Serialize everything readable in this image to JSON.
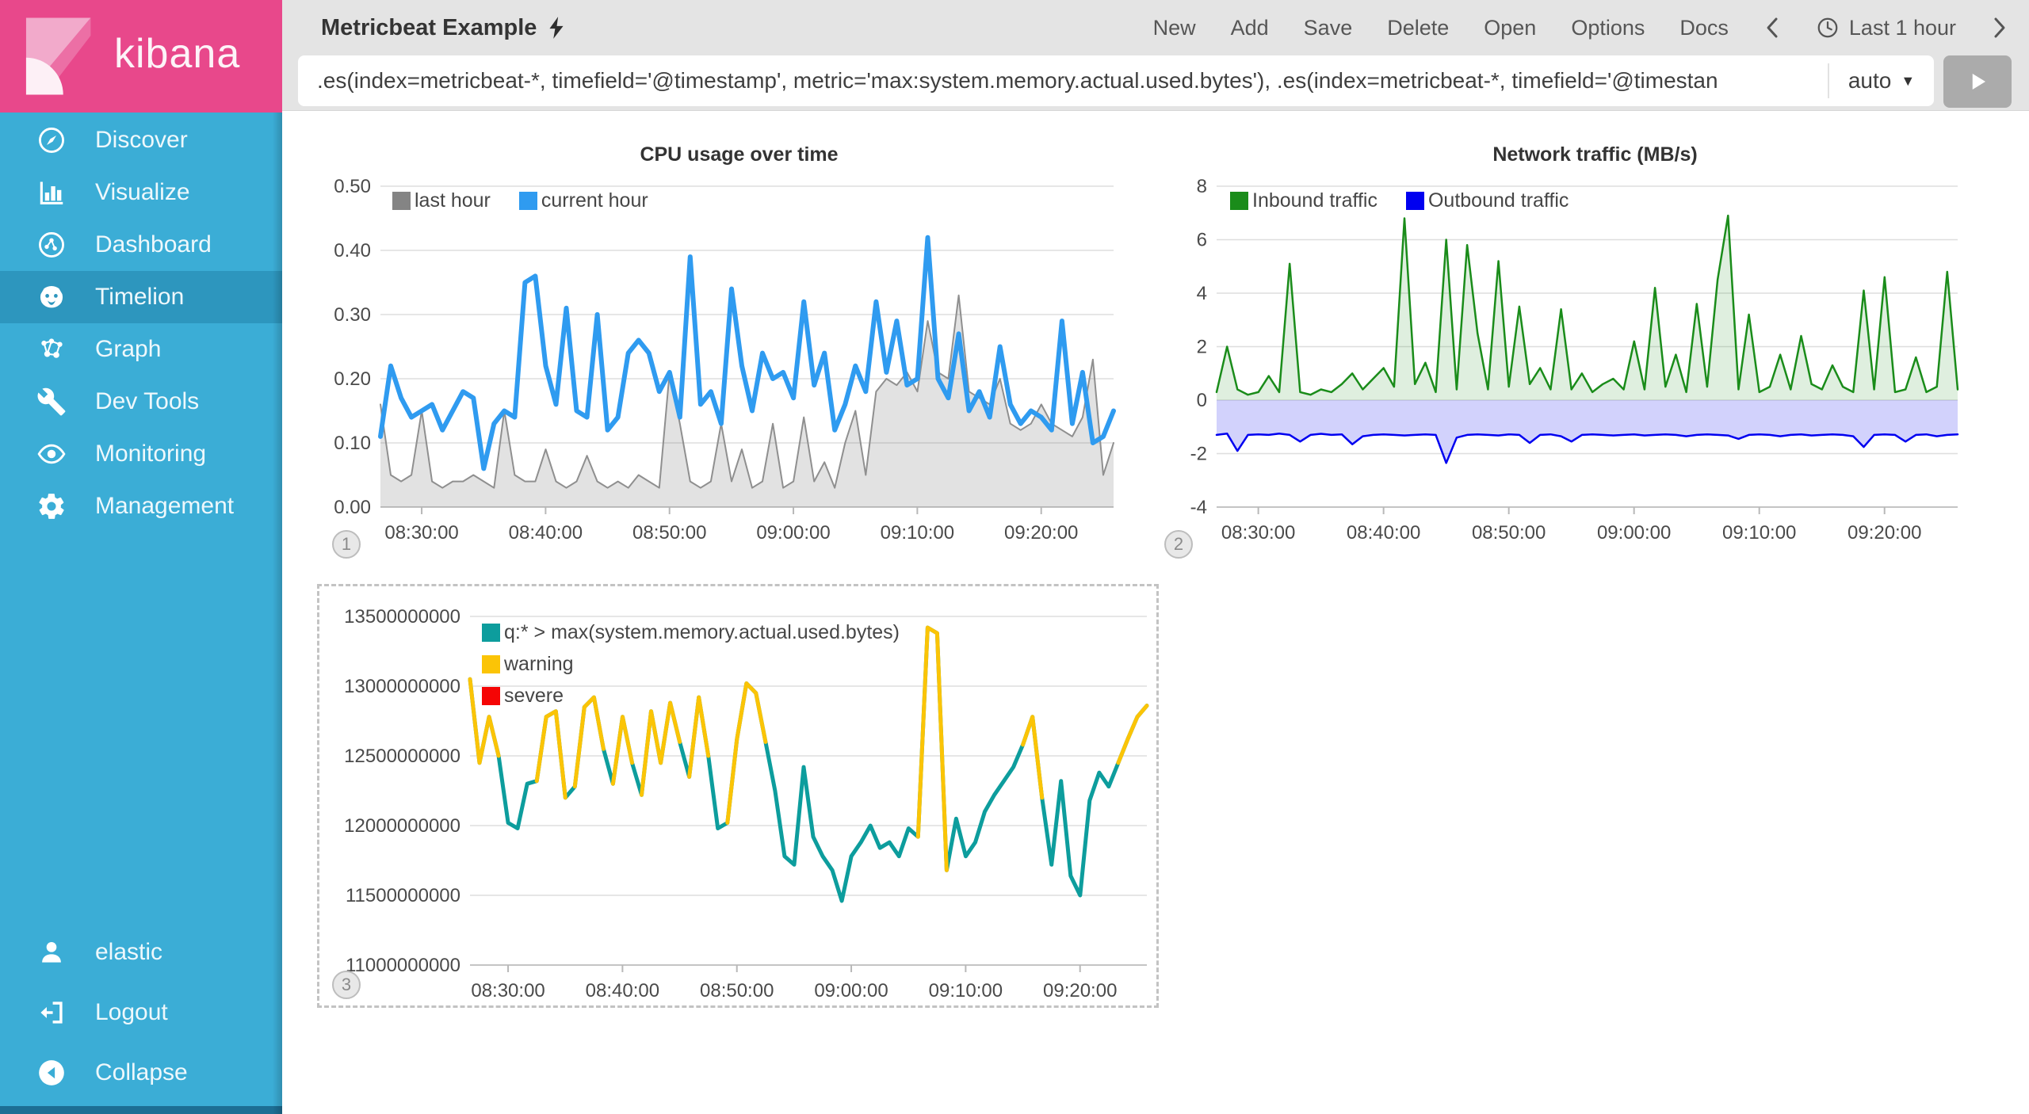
{
  "sidebar": {
    "logo_text": "kibana",
    "items": [
      {
        "label": "Discover",
        "icon": "compass"
      },
      {
        "label": "Visualize",
        "icon": "bar-chart"
      },
      {
        "label": "Dashboard",
        "icon": "dashboard-gauge"
      },
      {
        "label": "Timelion",
        "icon": "timelion-face",
        "active": true
      },
      {
        "label": "Graph",
        "icon": "node-graph"
      },
      {
        "label": "Dev Tools",
        "icon": "wrench"
      },
      {
        "label": "Monitoring",
        "icon": "eye"
      },
      {
        "label": "Management",
        "icon": "gear"
      }
    ],
    "footer_items": [
      {
        "label": "elastic",
        "icon": "user"
      },
      {
        "label": "Logout",
        "icon": "logout-arrow"
      },
      {
        "label": "Collapse",
        "icon": "collapse-circle"
      }
    ],
    "colors": {
      "background": "#3badd6",
      "active_row": "#2d96be",
      "logo_background": "#e8488b"
    }
  },
  "topbar": {
    "title": "Metricbeat Example",
    "menu_items": [
      "New",
      "Add",
      "Save",
      "Delete",
      "Open",
      "Options",
      "Docs"
    ],
    "timepicker": {
      "label": "Last 1 hour"
    },
    "query": {
      "value": ".es(index=metricbeat-*, timefield='@timestamp', metric='max:system.memory.actual.used.bytes'), .es(index=metricbeat-*, timefield='@timestan",
      "interval": "auto"
    }
  },
  "panels": [
    {
      "number": "1"
    },
    {
      "number": "2"
    },
    {
      "number": "3"
    }
  ],
  "chart_data": [
    {
      "type": "line",
      "title": "CPU usage over time",
      "x_tick_labels": [
        "08:30:00",
        "08:40:00",
        "08:50:00",
        "09:00:00",
        "09:10:00",
        "09:20:00"
      ],
      "y_tick_labels": [
        "0.50",
        "0.40",
        "0.30",
        "0.20",
        "0.10",
        "0.00"
      ],
      "ylim": [
        0,
        0.5
      ],
      "grid": true,
      "legend_position": "top-left-horizontal",
      "legend_items": [
        {
          "label": "last hour",
          "color": "#848484"
        },
        {
          "label": "current hour",
          "color": "#2f9bf0"
        }
      ],
      "series": [
        {
          "name": "last hour",
          "color": "#8f8f8f",
          "line_width": 2,
          "area": true,
          "fill": "rgba(125,125,125,0.22)",
          "values": [
            0.16,
            0.05,
            0.04,
            0.05,
            0.15,
            0.04,
            0.03,
            0.04,
            0.04,
            0.05,
            0.04,
            0.03,
            0.15,
            0.05,
            0.04,
            0.04,
            0.09,
            0.04,
            0.03,
            0.04,
            0.08,
            0.04,
            0.03,
            0.04,
            0.03,
            0.05,
            0.04,
            0.03,
            0.21,
            0.13,
            0.04,
            0.03,
            0.04,
            0.13,
            0.04,
            0.09,
            0.03,
            0.04,
            0.13,
            0.03,
            0.04,
            0.14,
            0.04,
            0.07,
            0.03,
            0.1,
            0.15,
            0.05,
            0.18,
            0.2,
            0.19,
            0.21,
            0.18,
            0.29,
            0.21,
            0.2,
            0.33,
            0.18,
            0.17,
            0.16,
            0.2,
            0.13,
            0.12,
            0.13,
            0.16,
            0.13,
            0.12,
            0.11,
            0.14,
            0.23,
            0.05,
            0.1
          ]
        },
        {
          "name": "current hour",
          "color": "#2f9bf0",
          "line_width": 6,
          "area": false,
          "values": [
            0.11,
            0.22,
            0.17,
            0.14,
            0.15,
            0.16,
            0.12,
            0.15,
            0.18,
            0.17,
            0.06,
            0.13,
            0.15,
            0.14,
            0.35,
            0.36,
            0.22,
            0.16,
            0.31,
            0.15,
            0.14,
            0.3,
            0.12,
            0.14,
            0.24,
            0.26,
            0.24,
            0.18,
            0.21,
            0.14,
            0.39,
            0.16,
            0.18,
            0.13,
            0.34,
            0.22,
            0.15,
            0.24,
            0.2,
            0.21,
            0.17,
            0.32,
            0.19,
            0.24,
            0.12,
            0.16,
            0.22,
            0.18,
            0.32,
            0.21,
            0.29,
            0.19,
            0.2,
            0.42,
            0.2,
            0.17,
            0.27,
            0.15,
            0.18,
            0.14,
            0.25,
            0.16,
            0.13,
            0.15,
            0.14,
            0.12,
            0.29,
            0.13,
            0.21,
            0.1,
            0.11,
            0.15
          ]
        }
      ]
    },
    {
      "type": "line",
      "title": "Network traffic (MB/s)",
      "x_tick_labels": [
        "08:30:00",
        "08:40:00",
        "08:50:00",
        "09:00:00",
        "09:10:00",
        "09:20:00"
      ],
      "y_tick_labels": [
        "8",
        "6",
        "4",
        "2",
        "0",
        "-2",
        "-4"
      ],
      "ylim": [
        -4,
        8
      ],
      "grid": true,
      "legend_position": "top-left-horizontal",
      "legend_items": [
        {
          "label": "Inbound traffic",
          "color": "#1a8c1a"
        },
        {
          "label": "Outbound traffic",
          "color": "#0000f0"
        }
      ],
      "series": [
        {
          "name": "Inbound traffic",
          "color": "#1a8c1a",
          "line_width": 2.5,
          "area": true,
          "fill": "rgba(40,150,40,0.15)",
          "values": [
            0.3,
            2.0,
            0.4,
            0.2,
            0.3,
            0.9,
            0.3,
            5.1,
            0.3,
            0.2,
            0.4,
            0.3,
            0.6,
            1.0,
            0.4,
            0.8,
            1.2,
            0.5,
            6.8,
            0.6,
            1.4,
            0.3,
            6.0,
            0.4,
            5.8,
            2.5,
            0.4,
            5.2,
            0.5,
            3.5,
            0.6,
            1.2,
            0.4,
            3.4,
            0.4,
            1.0,
            0.3,
            0.6,
            0.8,
            0.4,
            2.2,
            0.4,
            4.2,
            0.5,
            1.7,
            0.3,
            3.6,
            0.5,
            4.5,
            6.9,
            0.4,
            3.2,
            0.3,
            0.5,
            1.7,
            0.4,
            2.4,
            0.6,
            0.4,
            1.3,
            0.5,
            0.3,
            4.1,
            0.4,
            4.6,
            0.3,
            0.4,
            1.6,
            0.3,
            0.5,
            4.8,
            0.4
          ]
        },
        {
          "name": "Outbound traffic",
          "color": "#0000f0",
          "line_width": 2.5,
          "area": true,
          "fill": "rgba(95,95,245,0.28)",
          "values": [
            -1.3,
            -1.25,
            -1.9,
            -1.3,
            -1.28,
            -1.3,
            -1.25,
            -1.3,
            -1.55,
            -1.3,
            -1.26,
            -1.3,
            -1.28,
            -1.65,
            -1.35,
            -1.3,
            -1.28,
            -1.3,
            -1.32,
            -1.3,
            -1.28,
            -1.3,
            -2.35,
            -1.4,
            -1.3,
            -1.28,
            -1.3,
            -1.32,
            -1.28,
            -1.3,
            -1.6,
            -1.3,
            -1.28,
            -1.35,
            -1.55,
            -1.3,
            -1.28,
            -1.3,
            -1.32,
            -1.3,
            -1.28,
            -1.32,
            -1.3,
            -1.28,
            -1.3,
            -1.35,
            -1.3,
            -1.28,
            -1.3,
            -1.32,
            -1.45,
            -1.3,
            -1.28,
            -1.3,
            -1.35,
            -1.3,
            -1.28,
            -1.32,
            -1.3,
            -1.28,
            -1.3,
            -1.35,
            -1.75,
            -1.3,
            -1.28,
            -1.3,
            -1.55,
            -1.3,
            -1.28,
            -1.35,
            -1.3,
            -1.28
          ]
        }
      ]
    },
    {
      "type": "line",
      "title": "",
      "x_tick_labels": [
        "08:30:00",
        "08:40:00",
        "08:50:00",
        "09:00:00",
        "09:10:00",
        "09:20:00"
      ],
      "y_tick_labels": [
        "13500000000",
        "13000000000",
        "12500000000",
        "12000000000",
        "11500000000",
        "11000000000"
      ],
      "ylim": [
        11000000000,
        13500000000
      ],
      "grid": true,
      "selected": true,
      "legend_position": "top-left-vertical",
      "legend_items": [
        {
          "label": "q:* > max(system.memory.actual.used.bytes)",
          "color": "#0d9d9d"
        },
        {
          "label": "warning",
          "color": "#fbc406"
        },
        {
          "label": "severe",
          "color": "#f50505"
        }
      ],
      "series": [
        {
          "name": "q:* > max(system.memory.actual.used.bytes)",
          "color": "#0d9d9d",
          "line_width": 5,
          "area": false,
          "thresholds": [
            {
              "name": "warning",
              "color": "#fbc406",
              "above": 12600000000.0
            },
            {
              "name": "severe",
              "color": "#f50505",
              "above": 13450000000.0
            }
          ],
          "values": [
            13050000000.0,
            12450000000.0,
            12780000000.0,
            12500000000.0,
            12020000000.0,
            11980000000.0,
            12300000000.0,
            12320000000.0,
            12780000000.0,
            12820000000.0,
            12200000000.0,
            12280000000.0,
            12850000000.0,
            12920000000.0,
            12550000000.0,
            12300000000.0,
            12780000000.0,
            12450000000.0,
            12220000000.0,
            12820000000.0,
            12450000000.0,
            12880000000.0,
            12600000000.0,
            12350000000.0,
            12920000000.0,
            12500000000.0,
            11980000000.0,
            12020000000.0,
            12620000000.0,
            13020000000.0,
            12950000000.0,
            12600000000.0,
            12250000000.0,
            11780000000.0,
            11720000000.0,
            12420000000.0,
            11920000000.0,
            11780000000.0,
            11680000000.0,
            11460000000.0,
            11780000000.0,
            11880000000.0,
            12000000000.0,
            11840000000.0,
            11880000000.0,
            11780000000.0,
            11980000000.0,
            11920000000.0,
            13420000000.0,
            13380000000.0,
            11680000000.0,
            12050000000.0,
            11780000000.0,
            11880000000.0,
            12100000000.0,
            12220000000.0,
            12320000000.0,
            12420000000.0,
            12580000000.0,
            12780000000.0,
            12200000000.0,
            11720000000.0,
            12320000000.0,
            11640000000.0,
            11500000000.0,
            12180000000.0,
            12380000000.0,
            12280000000.0,
            12450000000.0,
            12620000000.0,
            12780000000.0,
            12860000000.0
          ]
        }
      ]
    }
  ]
}
